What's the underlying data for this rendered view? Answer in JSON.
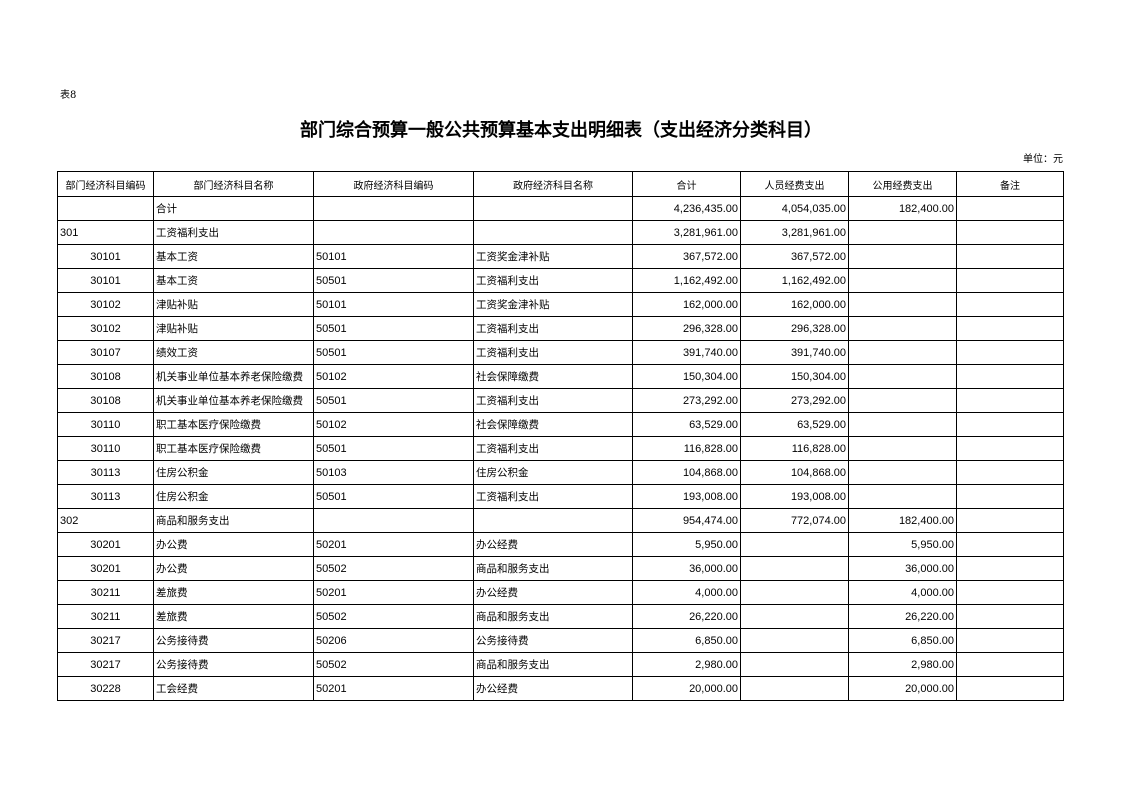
{
  "header": {
    "table_no": "表8",
    "title": "部门综合预算一般公共预算基本支出明细表（支出经济分类科目）",
    "unit": "单位：元"
  },
  "table": {
    "columns": [
      "部门经济科目编码",
      "部门经济科目名称",
      "政府经济科目编码",
      "政府经济科目名称",
      "合计",
      "人员经费支出",
      "公用经费支出",
      "备注"
    ],
    "rows": [
      [
        null,
        "合计",
        null,
        null,
        "4,236,435.00",
        "4,054,035.00",
        "182,400.00"
      ],
      [
        "301",
        "工资福利支出",
        null,
        null,
        "3,281,961.00",
        "3,281,961.00",
        null
      ],
      [
        "30101",
        "基本工资",
        "50101",
        "工资奖金津补贴",
        "367,572.00",
        "367,572.00",
        null
      ],
      [
        "30101",
        "基本工资",
        "50501",
        "工资福利支出",
        "1,162,492.00",
        "1,162,492.00",
        null
      ],
      [
        "30102",
        "津贴补贴",
        "50101",
        "工资奖金津补贴",
        "162,000.00",
        "162,000.00",
        null
      ],
      [
        "30102",
        "津贴补贴",
        "50501",
        "工资福利支出",
        "296,328.00",
        "296,328.00",
        null
      ],
      [
        "30107",
        "绩效工资",
        "50501",
        "工资福利支出",
        "391,740.00",
        "391,740.00",
        null
      ],
      [
        "30108",
        "机关事业单位基本养老保险缴费",
        "50102",
        "社会保障缴费",
        "150,304.00",
        "150,304.00",
        null
      ],
      [
        "30108",
        "机关事业单位基本养老保险缴费",
        "50501",
        "工资福利支出",
        "273,292.00",
        "273,292.00",
        null
      ],
      [
        "30110",
        "职工基本医疗保险缴费",
        "50102",
        "社会保障缴费",
        "63,529.00",
        "63,529.00",
        null
      ],
      [
        "30110",
        "职工基本医疗保险缴费",
        "50501",
        "工资福利支出",
        "116,828.00",
        "116,828.00",
        null
      ],
      [
        "30113",
        "住房公积金",
        "50103",
        "住房公积金",
        "104,868.00",
        "104,868.00",
        null
      ],
      [
        "30113",
        "住房公积金",
        "50501",
        "工资福利支出",
        "193,008.00",
        "193,008.00",
        null
      ],
      [
        "302",
        "商品和服务支出",
        null,
        null,
        "954,474.00",
        "772,074.00",
        "182,400.00"
      ],
      [
        "30201",
        "办公费",
        "50201",
        "办公经费",
        "5,950.00",
        null,
        "5,950.00"
      ],
      [
        "30201",
        "办公费",
        "50502",
        "商品和服务支出",
        "36,000.00",
        null,
        "36,000.00"
      ],
      [
        "30211",
        "差旅费",
        "50201",
        "办公经费",
        "4,000.00",
        null,
        "4,000.00"
      ],
      [
        "30211",
        "差旅费",
        "50502",
        "商品和服务支出",
        "26,220.00",
        null,
        "26,220.00"
      ],
      [
        "30217",
        "公务接待费",
        "50206",
        "公务接待费",
        "6,850.00",
        null,
        "6,850.00"
      ],
      [
        "30217",
        "公务接待费",
        "50502",
        "商品和服务支出",
        "2,980.00",
        null,
        "2,980.00"
      ],
      [
        "30228",
        "工会经费",
        "50201",
        "办公经费",
        "20,000.00",
        null,
        "20,000.00"
      ]
    ]
  }
}
